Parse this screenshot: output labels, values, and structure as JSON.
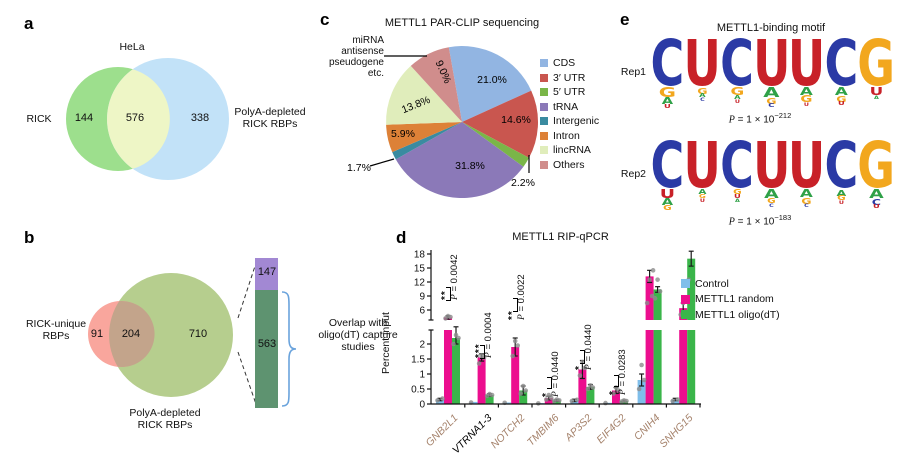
{
  "panel_labels": {
    "a": "a",
    "b": "b",
    "c": "c",
    "d": "d",
    "e": "e"
  },
  "chart_data": [
    {
      "id": "venn_hela",
      "type": "venn",
      "title": "HeLa",
      "sets": [
        {
          "label": "RICK",
          "unique": 144,
          "color": "#9ddf8d"
        },
        {
          "label": "PolyA-depleted RICK RBPs",
          "label_lines": [
            "PolyA-depleted",
            "RICK RBPs"
          ],
          "unique": 338,
          "color": "#c2e2f8"
        }
      ],
      "overlap": {
        "value": 576,
        "color": "#eef6c6"
      }
    },
    {
      "id": "venn_rick_rbps",
      "type": "venn",
      "sets": [
        {
          "label": "RICK-unique RBPs",
          "label_lines": [
            "RICK-unique",
            "RBPs"
          ],
          "unique": 91,
          "color": "#f9a69d"
        },
        {
          "label": "PolyA-depleted RICK RBPs",
          "label_lines": [
            "PolyA-depleted",
            "RICK RBPs"
          ],
          "unique": 710,
          "color": "#b6ce8e"
        }
      ],
      "overlap": {
        "value": 204,
        "color": "#c3a48b"
      },
      "stacked_bar": {
        "segments": [
          {
            "value": 147,
            "color": "#a288d3"
          },
          {
            "value": 563,
            "color": "#5e9370"
          }
        ],
        "brace_color": "#6aa3dc",
        "brace_label_lines": [
          "Overlap with",
          "oligo(dT) capture",
          "studies"
        ]
      }
    },
    {
      "id": "parclip_pie",
      "type": "pie",
      "title": "METTL1 PAR-CLIP sequencing",
      "start_angle_deg": -10,
      "slices": [
        {
          "label": "CDS",
          "value": 21.0,
          "pct_label": "21.0%",
          "color": "#92b5e2"
        },
        {
          "label": "3′ UTR",
          "value": 14.6,
          "pct_label": "14.6%",
          "color": "#c9564f"
        },
        {
          "label": "5′ UTR",
          "value": 2.2,
          "pct_label": "2.2%",
          "color": "#7ab648"
        },
        {
          "label": "tRNA",
          "value": 31.8,
          "pct_label": "31.8%",
          "color": "#8b79b8"
        },
        {
          "label": "Intergenic",
          "value": 1.7,
          "pct_label": "1.7%",
          "color": "#3a8ba0"
        },
        {
          "label": "Intron",
          "value": 5.9,
          "pct_label": "5.9%",
          "color": "#dd8137"
        },
        {
          "label": "lincRNA",
          "value": 13.8,
          "pct_label": "13.8%",
          "color": "#e0edbb"
        },
        {
          "label": "Others",
          "value": 9.0,
          "pct_label": "9.0%",
          "color": "#d08d8c"
        }
      ],
      "annotation_lines": [
        "miRNA",
        "antisense",
        "pseudogene",
        "etc."
      ],
      "legend_position": "right"
    },
    {
      "id": "rip_qpcr",
      "type": "bar",
      "title": "METTL1 RIP-qPCR",
      "ylabel": "Percent input",
      "axis_break": {
        "lower_range": [
          0,
          2.4
        ],
        "upper_range": [
          3.9,
          18.6
        ]
      },
      "yticks_lower": [
        "0",
        "0.5",
        "1",
        "1.5",
        "2"
      ],
      "yticks_upper": [
        "6",
        "9",
        "12",
        "15",
        "18"
      ],
      "categories": [
        "GNB2L1",
        "VTRNA1-3",
        "NOTCH2",
        "TMBIM6",
        "AP3S2",
        "EIF4G2",
        "CNIH4",
        "SNHG15"
      ],
      "category_colors": [
        "#a5826b",
        "#000000",
        "#a5826b",
        "#a5826b",
        "#a5826b",
        "#a5826b",
        "#a5826b",
        "#a5826b"
      ],
      "series": [
        {
          "name": "Control",
          "color": "#7fbeea",
          "values": [
            0.15,
            0.07,
            0.05,
            0.03,
            0.12,
            0.04,
            0.8,
            0.15
          ],
          "errors": [
            0.04,
            0,
            0,
            0,
            0.04,
            0,
            0.2,
            0.04
          ],
          "points": [
            [
              0.12,
              0.18
            ],
            [
              0.05
            ],
            [
              0.04
            ],
            [
              0.02
            ],
            [
              0.1,
              0.14
            ],
            [
              0.03
            ],
            [
              0.5,
              0.8,
              1.3
            ],
            [
              0.1,
              0.15
            ]
          ]
        },
        {
          "name": "METTL1 random",
          "color": "#ec0e8e",
          "values": [
            4.4,
            1.55,
            1.9,
            0.2,
            1.15,
            0.45,
            13.2,
            6.4
          ],
          "errors": [
            0.35,
            0.12,
            0.3,
            0.06,
            0.3,
            0.1,
            1.3,
            1.1
          ],
          "points": [
            [
              4.2,
              4.5,
              4.7
            ],
            [
              1.35,
              1.55,
              1.6
            ],
            [
              1.6,
              1.95,
              2.1
            ],
            [
              0.15,
              0.2,
              0.3
            ],
            [
              0.95,
              1.2,
              1.4
            ],
            [
              0.35,
              0.45,
              0.55
            ],
            [
              7.5,
              9.0,
              12.5,
              14.5
            ],
            [
              5.0,
              5.5,
              7.5
            ]
          ]
        },
        {
          "name": "METTL1 oligo(dT)",
          "color": "#3ab54a",
          "values": [
            2.2,
            0.3,
            0.45,
            0.12,
            0.57,
            0.1,
            10.4,
            17.0
          ],
          "errors": [
            0.2,
            0.04,
            0.15,
            0.03,
            0.08,
            0.03,
            0.6,
            1.6
          ],
          "points": [
            [
              2.0,
              2.2,
              2.3
            ],
            [
              0.27,
              0.3,
              0.33
            ],
            [
              0.35,
              0.45,
              0.6
            ],
            [
              0.1,
              0.12,
              0.15
            ],
            [
              0.5,
              0.55,
              0.62
            ],
            [
              0.08,
              0.1,
              0.12
            ],
            [
              8.5,
              10.0,
              12.5
            ],
            [
              12.5
            ]
          ]
        }
      ],
      "significance": [
        {
          "category": "GNB2L1",
          "stars": "**",
          "p_label": "P = 0.0042"
        },
        {
          "category": "VTRNA1-3",
          "stars": "***",
          "p_label": "P = 0.0004"
        },
        {
          "category": "NOTCH2",
          "stars": "**",
          "p_label": "P = 0.0022"
        },
        {
          "category": "TMBIM6",
          "stars": "*",
          "p_label": "P = 0.0440"
        },
        {
          "category": "AP3S2",
          "stars": "*",
          "p_label": "P = 0.0440"
        },
        {
          "category": "EIF4G2",
          "stars": "*",
          "p_label": "P = 0.0283"
        }
      ]
    },
    {
      "id": "binding_motif",
      "type": "logo",
      "title": "METTL1-binding motif",
      "base_colors": {
        "A": "#2fa148",
        "C": "#2b3aa5",
        "G": "#f2a71e",
        "U": "#c82128"
      },
      "consensus": "CUCUUCG",
      "reps": [
        {
          "label": "Rep1",
          "p_value": "1",
          "p_exponent": "−212",
          "positions": [
            {
              "main": "C",
              "sub": [
                [
                  "G",
                  10
                ],
                [
                  "A",
                  7
                ],
                [
                  "U",
                  4
                ]
              ]
            },
            {
              "main": "U",
              "sub": [
                [
                  "G",
                  6
                ],
                [
                  "A",
                  4
                ],
                [
                  "C",
                  3
                ]
              ]
            },
            {
              "main": "C",
              "sub": [
                [
                  "G",
                  8
                ],
                [
                  "A",
                  4
                ],
                [
                  "U",
                  3
                ]
              ]
            },
            {
              "main": "U",
              "sub": [
                [
                  "A",
                  10
                ],
                [
                  "G",
                  6
                ],
                [
                  "C",
                  4
                ]
              ]
            },
            {
              "main": "U",
              "sub": [
                [
                  "A",
                  8
                ],
                [
                  "G",
                  7
                ],
                [
                  "U",
                  3
                ]
              ]
            },
            {
              "main": "C",
              "sub": [
                [
                  "A",
                  8
                ],
                [
                  "G",
                  6
                ],
                [
                  "U",
                  4
                ]
              ]
            },
            {
              "main": "G",
              "sub": [
                [
                  "U",
                  8
                ],
                [
                  "A",
                  3
                ]
              ]
            }
          ]
        },
        {
          "label": "Rep2",
          "p_value": "1",
          "p_exponent": "−183",
          "positions": [
            {
              "main": "C",
              "sub": [
                [
                  "U",
                  9
                ],
                [
                  "A",
                  7
                ],
                [
                  "G",
                  5
                ]
              ]
            },
            {
              "main": "U",
              "sub": [
                [
                  "A",
                  5
                ],
                [
                  "G",
                  4
                ],
                [
                  "U",
                  3
                ]
              ]
            },
            {
              "main": "C",
              "sub": [
                [
                  "G",
                  5
                ],
                [
                  "U",
                  4
                ],
                [
                  "A",
                  3
                ]
              ]
            },
            {
              "main": "U",
              "sub": [
                [
                  "A",
                  9
                ],
                [
                  "G",
                  5
                ],
                [
                  "C",
                  3
                ]
              ]
            },
            {
              "main": "U",
              "sub": [
                [
                  "A",
                  8
                ],
                [
                  "G",
                  6
                ],
                [
                  "C",
                  3
                ]
              ]
            },
            {
              "main": "C",
              "sub": [
                [
                  "A",
                  6
                ],
                [
                  "G",
                  5
                ],
                [
                  "U",
                  3
                ]
              ]
            },
            {
              "main": "G",
              "sub": [
                [
                  "A",
                  9
                ],
                [
                  "C",
                  6
                ],
                [
                  "U",
                  4
                ]
              ]
            }
          ]
        }
      ]
    }
  ]
}
